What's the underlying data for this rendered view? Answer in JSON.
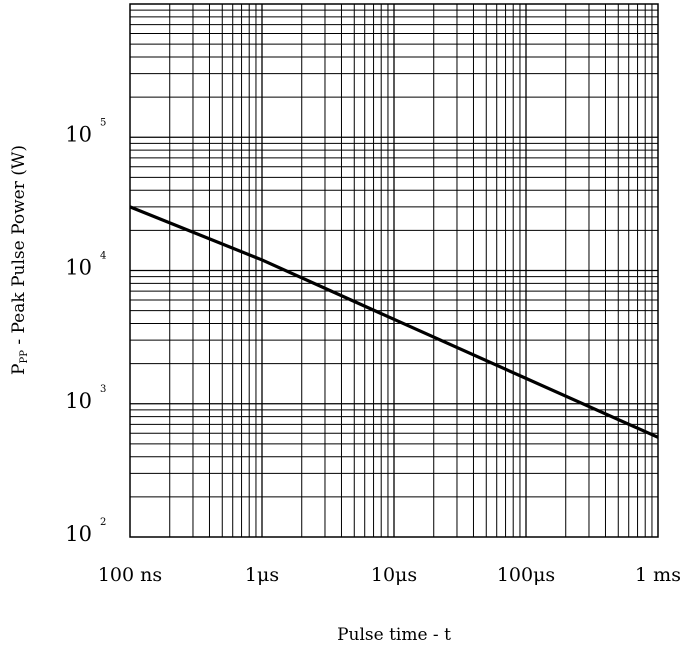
{
  "chart_data": {
    "type": "line",
    "xscale": "log",
    "yscale": "log",
    "xlim_seconds": [
      1e-07,
      0.001
    ],
    "ylim_watts": [
      100,
      1000000
    ],
    "grid": true,
    "xlabel": "Pulse time - t",
    "ylabel": {
      "main": "P",
      "sub": "PP",
      "rest": " - Peak Pulse Power (W)"
    },
    "x_tick_labels": [
      {
        "label": "100 ns",
        "value": 1e-07
      },
      {
        "label": "1μs",
        "value": 1e-06
      },
      {
        "label": "10μs",
        "value": 1e-05
      },
      {
        "label": "100μs",
        "value": 0.0001
      },
      {
        "label": "1 ms",
        "value": 0.001
      }
    ],
    "y_tick_labels": [
      {
        "base": "10",
        "exp": "2",
        "value": 100
      },
      {
        "base": "10",
        "exp": "3",
        "value": 1000
      },
      {
        "base": "10",
        "exp": "4",
        "value": 10000
      },
      {
        "base": "10",
        "exp": "5",
        "value": 100000
      }
    ],
    "series": [
      {
        "x": [
          1e-07,
          1e-06,
          1e-05,
          0.0001,
          0.001
        ],
        "y": [
          30000,
          12000,
          4300,
          1550,
          560
        ]
      }
    ]
  }
}
